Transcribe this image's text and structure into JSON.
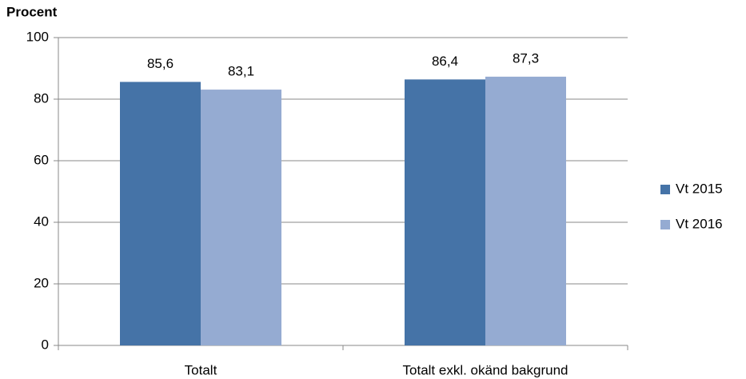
{
  "chart_data": {
    "type": "bar",
    "y_axis_label": "Procent",
    "categories": [
      "Totalt",
      "Totalt exkl. okänd bakgrund"
    ],
    "series": [
      {
        "name": "Vt 2015",
        "color": "#4573a7",
        "values": [
          85.6,
          86.4
        ],
        "value_labels": [
          "85,6",
          "86,4"
        ]
      },
      {
        "name": "Vt 2016",
        "color": "#95abd2",
        "values": [
          83.1,
          87.3
        ],
        "value_labels": [
          "83,1",
          "87,3"
        ]
      }
    ],
    "ylim": [
      0,
      100
    ],
    "yticks": [
      0,
      20,
      40,
      60,
      80,
      100
    ],
    "grid": true,
    "legend": "right"
  }
}
